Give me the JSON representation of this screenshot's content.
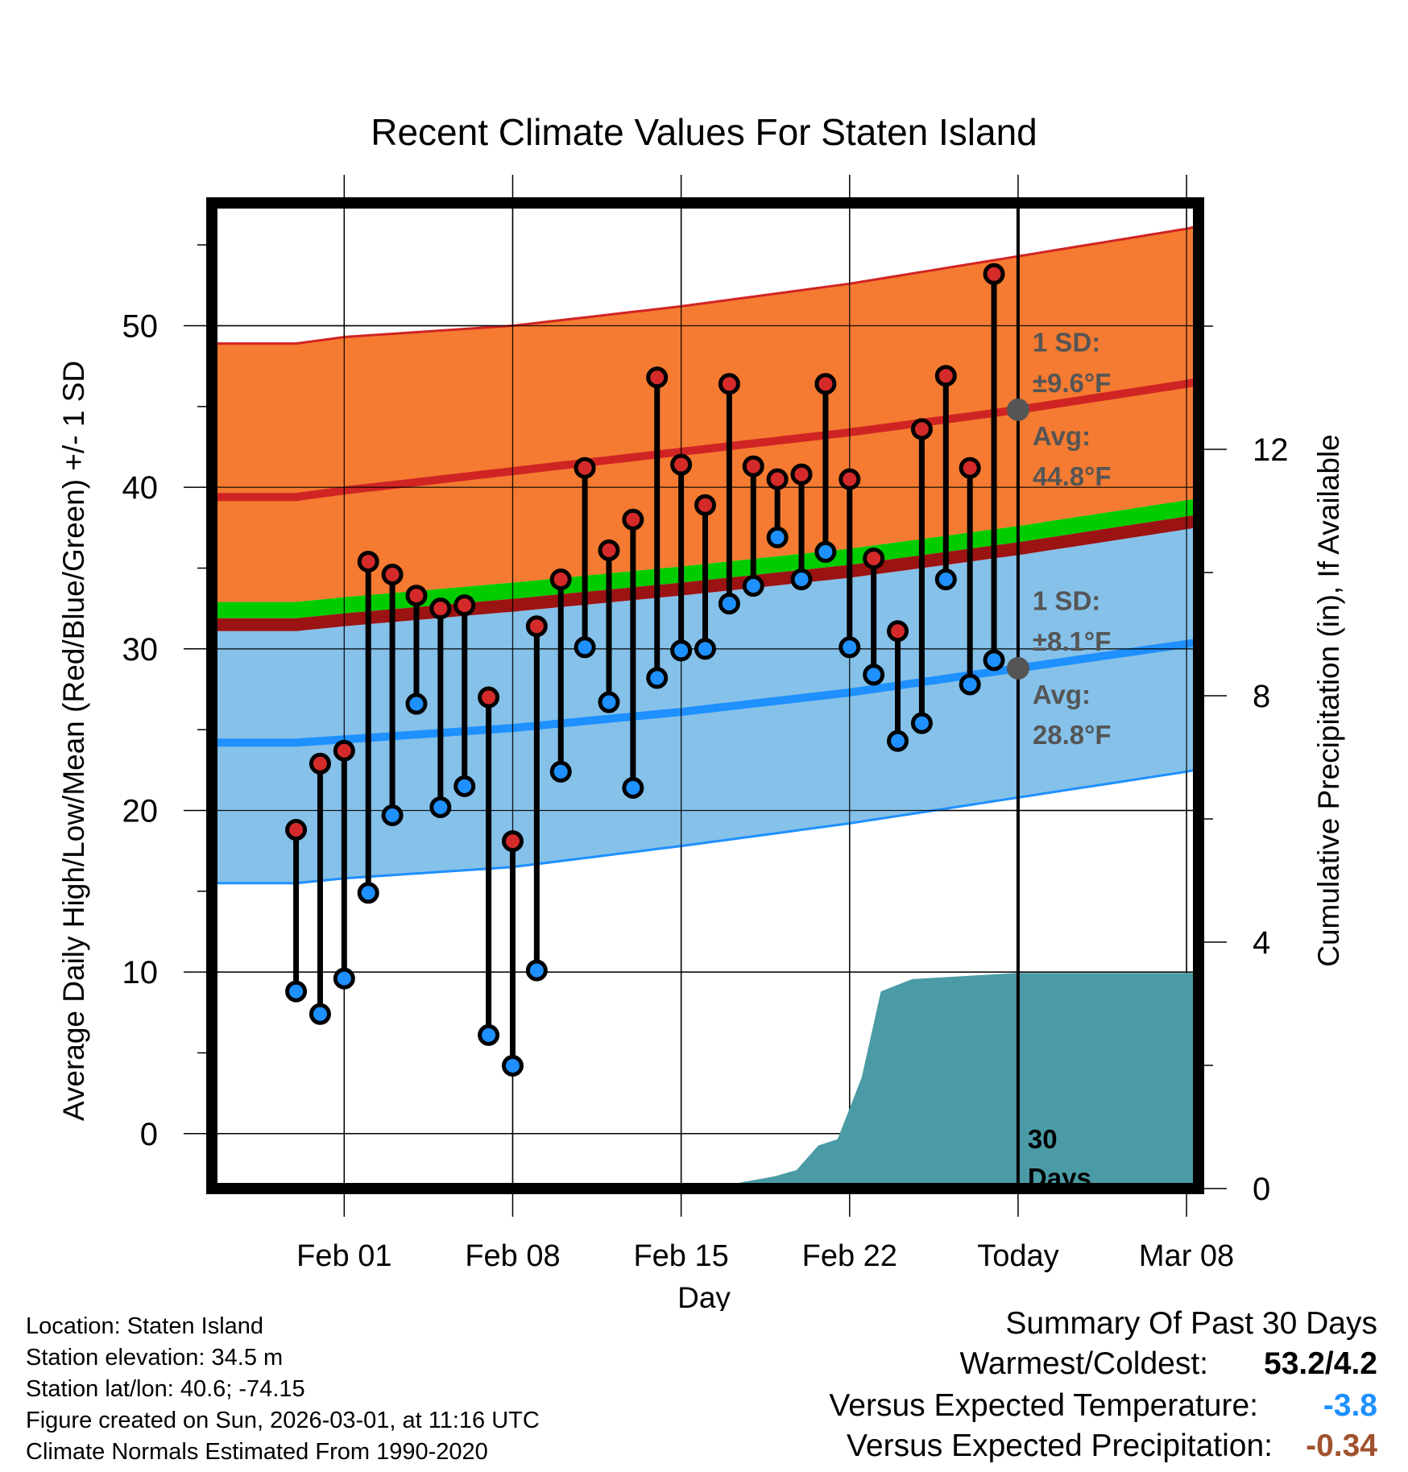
{
  "chart_data": {
    "type": "line",
    "title": "Recent Climate Values For Staten Island",
    "xlabel": "Day",
    "ylabel": "Average Daily High/Low/Mean (Red/Blue/Green) +/- 1 SD",
    "y2label": "Cumulative Precipitation (in), If Available",
    "ylim": [
      -3.4,
      57.6
    ],
    "yticks": [
      "0",
      "10",
      "20",
      "30",
      "40",
      "50"
    ],
    "y2lim": [
      0,
      16
    ],
    "y2ticks": [
      "0",
      "4",
      "8",
      "12"
    ],
    "xlim_days": [
      -5.5,
      35.5
    ],
    "xticks": [
      {
        "day": 0,
        "label": "Feb 01"
      },
      {
        "day": 7,
        "label": "Feb 08"
      },
      {
        "day": 14,
        "label": "Feb 15"
      },
      {
        "day": 21,
        "label": "Feb 22"
      },
      {
        "day": 28,
        "label": "Today"
      },
      {
        "day": 35,
        "label": "Mar 08"
      }
    ],
    "normals": {
      "days": [
        -2,
        0,
        7,
        14,
        21,
        28,
        35,
        38
      ],
      "high_avg": [
        39.4,
        39.8,
        41.0,
        42.2,
        43.4,
        44.8,
        46.4,
        47.3
      ],
      "high_upper": [
        48.9,
        49.3,
        50.0,
        51.2,
        52.6,
        54.3,
        56.0,
        57.0
      ],
      "low_avg": [
        24.2,
        24.4,
        25.1,
        26.1,
        27.3,
        28.8,
        30.3,
        31.0
      ],
      "low_lower": [
        15.5,
        15.8,
        16.5,
        17.8,
        19.2,
        20.8,
        22.4,
        23.3
      ],
      "mean_avg": [
        32.1,
        32.4,
        33.3,
        34.3,
        35.4,
        36.8,
        38.4,
        39.1
      ]
    },
    "highs": [
      18.8,
      22.9,
      23.7,
      35.4,
      34.6,
      33.3,
      32.5,
      32.7,
      27.0,
      18.1,
      31.4,
      34.3,
      41.2,
      36.1,
      38.0,
      46.8,
      41.4,
      38.9,
      46.4,
      41.3,
      40.5,
      40.8,
      46.4,
      40.5,
      35.6,
      31.1,
      43.6,
      46.9,
      41.2,
      53.2
    ],
    "lows": [
      8.8,
      7.4,
      9.6,
      14.9,
      19.7,
      26.6,
      20.2,
      21.5,
      6.1,
      4.2,
      10.1,
      22.4,
      30.1,
      26.7,
      21.4,
      28.2,
      29.9,
      30.0,
      32.8,
      33.9,
      36.9,
      34.3,
      36.0,
      30.1,
      28.4,
      24.3,
      25.4,
      34.3,
      27.8,
      29.3
    ],
    "first_day": -2,
    "precip_cumulative": {
      "days": [
        -5.5,
        15.8,
        16.5,
        17.9,
        18.8,
        19.7,
        20.5,
        21.5,
        22.3,
        23.6,
        28.0,
        38.0
      ],
      "values": [
        0,
        0,
        0.1,
        0.2,
        0.3,
        0.7,
        0.8,
        1.8,
        3.2,
        3.4,
        3.5,
        3.5
      ]
    },
    "annotations": {
      "high_sd_label": "1 SD:",
      "high_sd_value": "±9.6°F",
      "high_avg_label": "Avg:",
      "high_avg_value": "44.8°F",
      "low_sd_label": "1 SD:",
      "low_sd_value": "±8.1°F",
      "low_avg_label": "Avg:",
      "low_avg_value": "28.8°F",
      "period_line1": "30",
      "period_line2": "Days"
    },
    "colors": {
      "high_band": "#f47b31",
      "high_line": "#d02424",
      "low_band": "#85c1e9",
      "low_line": "#1e90ff",
      "mean_line": "#00cc00",
      "mean_dark": "#9b1313",
      "precip": "#4a9ba5",
      "high_dot": "#d42a2a",
      "low_dot": "#1e90ff",
      "annot": "#555555"
    }
  },
  "info": {
    "location": "Location: Staten Island",
    "elevation": "Station elevation: 34.5 m",
    "latlon": "Station lat/lon: 40.6; -74.15",
    "created": "Figure created on Sun, 2026-03-01, at 11:16 UTC",
    "normals": "Climate Normals Estimated From 1990-2020"
  },
  "summary": {
    "title": "Summary Of Past 30 Days",
    "warm_cold_label": "Warmest/Coldest:",
    "warm_cold_value": "53.2/4.2",
    "temp_label": "Versus Expected Temperature:",
    "temp_value": "-3.8",
    "temp_color": "#1e90ff",
    "precip_label": "Versus Expected Precipitation:",
    "precip_value": "-0.34",
    "precip_color": "#a0522d"
  }
}
